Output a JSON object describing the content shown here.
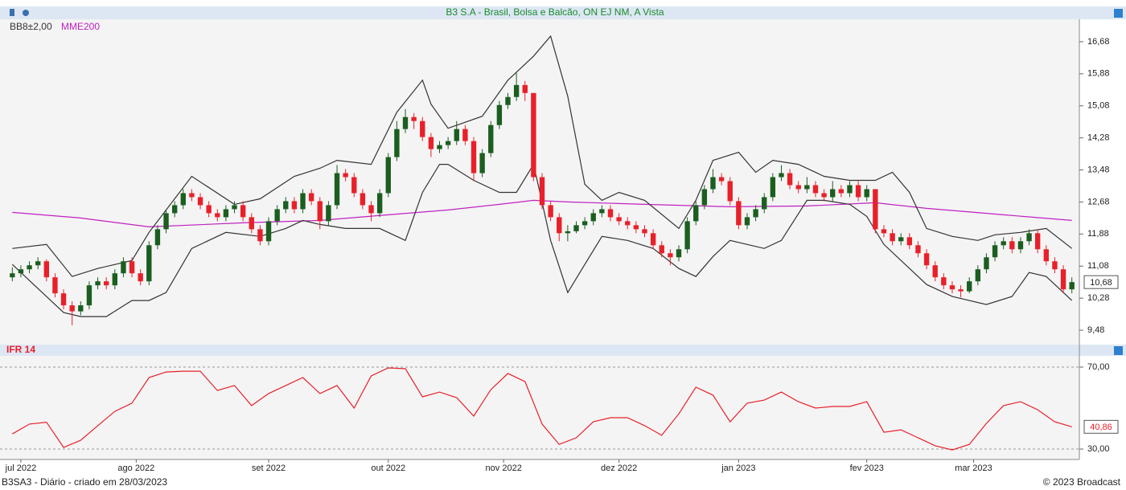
{
  "chart_data": [
    {
      "type": "candlestick",
      "title": "B3 S.A - Brasil, Bolsa e Balcão, ON  EJ  NM, A Vista",
      "up_color": "#1b5e20",
      "down_color": "#e8202a",
      "candles": [
        [
          10.8,
          11.05,
          10.7,
          10.9
        ],
        [
          10.9,
          11.1,
          10.8,
          11.0
        ],
        [
          11.0,
          11.2,
          10.9,
          11.1
        ],
        [
          11.1,
          11.3,
          11.0,
          11.2
        ],
        [
          11.2,
          11.25,
          10.7,
          10.8
        ],
        [
          10.8,
          10.9,
          10.3,
          10.4
        ],
        [
          10.4,
          10.5,
          10.0,
          10.1
        ],
        [
          10.1,
          10.2,
          9.6,
          9.95
        ],
        [
          9.95,
          10.2,
          9.85,
          10.1
        ],
        [
          10.1,
          10.7,
          10.0,
          10.6
        ],
        [
          10.6,
          10.8,
          10.5,
          10.7
        ],
        [
          10.7,
          10.8,
          10.5,
          10.6
        ],
        [
          10.6,
          11.0,
          10.5,
          10.9
        ],
        [
          10.9,
          11.3,
          10.8,
          11.2
        ],
        [
          11.2,
          11.3,
          10.8,
          10.9
        ],
        [
          10.9,
          11.0,
          10.6,
          10.7
        ],
        [
          10.7,
          11.7,
          10.6,
          11.6
        ],
        [
          11.6,
          12.1,
          11.5,
          12.0
        ],
        [
          12.0,
          12.5,
          11.9,
          12.4
        ],
        [
          12.4,
          12.7,
          12.3,
          12.6
        ],
        [
          12.6,
          13.0,
          12.5,
          12.9
        ],
        [
          12.9,
          13.0,
          12.7,
          12.8
        ],
        [
          12.8,
          12.9,
          12.5,
          12.6
        ],
        [
          12.6,
          12.7,
          12.3,
          12.4
        ],
        [
          12.4,
          12.5,
          12.2,
          12.3
        ],
        [
          12.3,
          12.6,
          12.2,
          12.5
        ],
        [
          12.5,
          12.7,
          12.4,
          12.6
        ],
        [
          12.6,
          12.7,
          12.2,
          12.3
        ],
        [
          12.3,
          12.4,
          11.9,
          12.0
        ],
        [
          12.0,
          12.1,
          11.6,
          11.7
        ],
        [
          11.7,
          12.3,
          11.6,
          12.2
        ],
        [
          12.2,
          12.6,
          12.1,
          12.5
        ],
        [
          12.5,
          12.8,
          12.4,
          12.7
        ],
        [
          12.7,
          12.8,
          12.4,
          12.5
        ],
        [
          12.5,
          13.0,
          12.4,
          12.9
        ],
        [
          12.9,
          13.0,
          12.6,
          12.7
        ],
        [
          12.7,
          12.8,
          12.0,
          12.2
        ],
        [
          12.2,
          12.7,
          12.1,
          12.6
        ],
        [
          12.6,
          13.6,
          12.5,
          13.4
        ],
        [
          13.4,
          13.5,
          13.2,
          13.3
        ],
        [
          13.3,
          13.4,
          12.8,
          12.9
        ],
        [
          12.9,
          13.0,
          12.5,
          12.6
        ],
        [
          12.6,
          12.7,
          12.2,
          12.4
        ],
        [
          12.4,
          13.0,
          12.3,
          12.9
        ],
        [
          12.9,
          13.9,
          12.8,
          13.8
        ],
        [
          13.8,
          14.7,
          13.7,
          14.5
        ],
        [
          14.5,
          15.0,
          14.4,
          14.8
        ],
        [
          14.8,
          14.9,
          14.5,
          14.7
        ],
        [
          14.7,
          14.8,
          14.2,
          14.3
        ],
        [
          14.3,
          14.4,
          13.8,
          14.0
        ],
        [
          14.0,
          14.2,
          13.9,
          14.1
        ],
        [
          14.1,
          14.3,
          14.0,
          14.2
        ],
        [
          14.2,
          14.7,
          14.1,
          14.5
        ],
        [
          14.5,
          14.6,
          14.1,
          14.2
        ],
        [
          14.2,
          14.3,
          13.2,
          13.4
        ],
        [
          13.4,
          14.0,
          13.3,
          13.9
        ],
        [
          13.9,
          14.7,
          13.8,
          14.6
        ],
        [
          14.6,
          15.2,
          14.5,
          15.1
        ],
        [
          15.1,
          15.4,
          15.0,
          15.3
        ],
        [
          15.3,
          15.9,
          15.2,
          15.6
        ],
        [
          15.6,
          15.7,
          15.2,
          15.4
        ],
        [
          15.4,
          15.4,
          13.2,
          13.3
        ],
        [
          13.3,
          13.4,
          12.5,
          12.6
        ],
        [
          12.6,
          12.7,
          12.2,
          12.3
        ],
        [
          12.3,
          12.4,
          11.7,
          11.9
        ],
        [
          11.9,
          12.1,
          11.7,
          11.95
        ],
        [
          11.95,
          12.2,
          11.9,
          12.1
        ],
        [
          12.1,
          12.3,
          12.0,
          12.2
        ],
        [
          12.2,
          12.5,
          12.1,
          12.4
        ],
        [
          12.4,
          12.6,
          12.3,
          12.5
        ],
        [
          12.5,
          12.6,
          12.2,
          12.3
        ],
        [
          12.3,
          12.4,
          12.1,
          12.2
        ],
        [
          12.2,
          12.3,
          12.0,
          12.1
        ],
        [
          12.1,
          12.2,
          11.9,
          12.0
        ],
        [
          12.0,
          12.1,
          11.8,
          11.9
        ],
        [
          11.9,
          12.0,
          11.5,
          11.6
        ],
        [
          11.6,
          11.7,
          11.3,
          11.4
        ],
        [
          11.4,
          11.5,
          11.1,
          11.3
        ],
        [
          11.3,
          11.6,
          11.2,
          11.5
        ],
        [
          11.5,
          12.3,
          11.4,
          12.2
        ],
        [
          12.2,
          12.7,
          12.1,
          12.6
        ],
        [
          12.6,
          13.1,
          12.5,
          13.0
        ],
        [
          13.0,
          13.5,
          12.9,
          13.3
        ],
        [
          13.3,
          13.4,
          13.1,
          13.2
        ],
        [
          13.2,
          13.3,
          12.6,
          12.7
        ],
        [
          12.7,
          12.8,
          12.0,
          12.1
        ],
        [
          12.1,
          12.4,
          12.0,
          12.3
        ],
        [
          12.3,
          12.6,
          12.2,
          12.5
        ],
        [
          12.5,
          12.9,
          12.4,
          12.8
        ],
        [
          12.8,
          13.4,
          12.7,
          13.3
        ],
        [
          13.3,
          13.6,
          13.2,
          13.4
        ],
        [
          13.4,
          13.5,
          13.0,
          13.1
        ],
        [
          13.1,
          13.2,
          12.9,
          13.0
        ],
        [
          13.0,
          13.3,
          12.9,
          13.1
        ],
        [
          13.1,
          13.2,
          12.8,
          12.9
        ],
        [
          12.9,
          13.0,
          12.7,
          12.8
        ],
        [
          12.8,
          13.2,
          12.7,
          13.0
        ],
        [
          13.0,
          13.1,
          12.8,
          12.9
        ],
        [
          12.9,
          13.2,
          12.8,
          13.1
        ],
        [
          13.1,
          13.2,
          12.7,
          12.8
        ],
        [
          12.8,
          13.1,
          12.7,
          13.0
        ],
        [
          13.0,
          13.0,
          11.9,
          12.0
        ],
        [
          12.0,
          12.1,
          11.8,
          11.9
        ],
        [
          11.9,
          12.0,
          11.6,
          11.7
        ],
        [
          11.7,
          11.9,
          11.6,
          11.8
        ],
        [
          11.8,
          11.9,
          11.5,
          11.6
        ],
        [
          11.6,
          11.7,
          11.3,
          11.4
        ],
        [
          11.4,
          11.5,
          11.0,
          11.1
        ],
        [
          11.1,
          11.2,
          10.7,
          10.8
        ],
        [
          10.8,
          10.9,
          10.5,
          10.6
        ],
        [
          10.6,
          10.7,
          10.4,
          10.5
        ],
        [
          10.5,
          10.6,
          10.3,
          10.45
        ],
        [
          10.45,
          10.8,
          10.4,
          10.7
        ],
        [
          10.7,
          11.1,
          10.6,
          11.0
        ],
        [
          11.0,
          11.4,
          10.9,
          11.3
        ],
        [
          11.3,
          11.7,
          11.2,
          11.6
        ],
        [
          11.6,
          11.8,
          11.5,
          11.7
        ],
        [
          11.7,
          11.8,
          11.4,
          11.5
        ],
        [
          11.5,
          11.8,
          11.4,
          11.7
        ],
        [
          11.7,
          12.0,
          11.6,
          11.9
        ],
        [
          11.9,
          12.0,
          11.4,
          11.5
        ],
        [
          11.5,
          11.6,
          11.1,
          11.2
        ],
        [
          11.2,
          11.3,
          10.9,
          11.0
        ],
        [
          11.0,
          11.1,
          10.4,
          10.5
        ],
        [
          10.5,
          10.8,
          10.4,
          10.68
        ]
      ],
      "series": [
        {
          "name": "BB8±2,00",
          "color": "#333333",
          "upper": {
            "x": [
              0,
              4,
              7,
              10,
              14,
              16,
              21,
              26,
              29,
              33,
              36,
              38,
              42,
              45,
              48,
              49,
              51,
              55,
              58,
              61,
              63,
              65,
              67,
              69,
              71,
              74,
              78,
              80,
              82,
              85,
              87,
              89,
              92,
              95,
              98,
              101,
              103,
              105,
              107,
              110,
              113,
              115,
              118,
              121,
              124
            ],
            "values": [
              11.52,
              11.62,
              10.82,
              11.02,
              11.22,
              11.92,
              13.32,
              12.62,
              12.76,
              13.32,
              13.52,
              13.72,
              13.62,
              14.92,
              15.72,
              15.12,
              14.52,
              14.82,
              15.72,
              16.32,
              16.82,
              15.32,
              13.12,
              12.72,
              12.92,
              12.72,
              12.02,
              12.72,
              13.72,
              13.92,
              13.42,
              13.72,
              13.62,
              13.32,
              13.22,
              13.22,
              13.42,
              12.92,
              12.02,
              11.82,
              11.72,
              11.86,
              11.92,
              12.02,
              11.52
            ]
          },
          "lower": {
            "x": [
              0,
              3,
              6,
              8,
              11,
              14,
              16,
              18,
              21,
              25,
              29,
              32,
              34,
              36,
              39,
              43,
              46,
              48,
              50,
              51,
              54,
              57,
              59,
              61,
              63,
              65,
              67,
              69,
              72,
              75,
              78,
              80,
              82,
              84,
              86,
              88,
              90,
              93,
              95,
              98,
              100,
              102,
              105,
              107,
              110,
              114,
              117,
              119,
              121,
              124
            ],
            "values": [
              11.12,
              10.52,
              9.92,
              9.82,
              9.82,
              10.22,
              10.22,
              10.42,
              11.52,
              11.92,
              11.82,
              12.02,
              12.22,
              12.12,
              12.02,
              12.02,
              11.72,
              12.92,
              13.62,
              13.62,
              13.22,
              12.92,
              12.92,
              13.62,
              11.72,
              10.42,
              11.12,
              11.82,
              11.72,
              11.52,
              11.02,
              10.82,
              11.32,
              11.72,
              11.62,
              11.52,
              11.72,
              12.72,
              12.72,
              12.62,
              12.32,
              11.62,
              11.02,
              10.62,
              10.32,
              10.12,
              10.32,
              10.92,
              10.82,
              10.22
            ]
          }
        },
        {
          "name": "MME200",
          "color": "#c020c0",
          "x": [
            0,
            8,
            16,
            27,
            36,
            44,
            51,
            57,
            61,
            65,
            74,
            84,
            93,
            101,
            107,
            116,
            124
          ],
          "values": [
            12.42,
            12.28,
            12.06,
            12.16,
            12.22,
            12.36,
            12.48,
            12.62,
            12.72,
            12.68,
            12.62,
            12.56,
            12.58,
            12.66,
            12.52,
            12.36,
            12.22
          ]
        }
      ],
      "ylim": [
        9.14,
        17.16
      ],
      "yticks": [
        {
          "value": 9.48,
          "label": "9,48"
        },
        {
          "value": 10.28,
          "label": "10,28"
        },
        {
          "value": 11.08,
          "label": "11,08"
        },
        {
          "value": 11.88,
          "label": "11,88"
        },
        {
          "value": 12.68,
          "label": "12,68"
        },
        {
          "value": 13.48,
          "label": "13,48"
        },
        {
          "value": 14.28,
          "label": "14,28"
        },
        {
          "value": 15.08,
          "label": "15,08"
        },
        {
          "value": 15.88,
          "label": "15,88"
        },
        {
          "value": 16.68,
          "label": "16,68"
        }
      ],
      "last_label": {
        "value": 10.68,
        "label": "10,68"
      }
    },
    {
      "type": "line",
      "title": "IFR 14",
      "color": "#e8202a",
      "x": [
        0,
        2,
        4,
        6,
        8,
        10,
        12,
        14,
        16,
        18,
        20,
        22,
        24,
        26,
        28,
        30,
        32,
        34,
        36,
        38,
        40,
        42,
        44,
        46,
        48,
        50,
        52,
        54,
        56,
        58,
        60,
        62,
        64,
        66,
        68,
        70,
        72,
        74,
        76,
        78,
        80,
        82,
        84,
        86,
        88,
        90,
        92,
        94,
        96,
        98,
        100,
        102,
        104,
        106,
        108,
        110,
        112,
        114,
        116,
        118,
        120,
        122,
        124
      ],
      "values": [
        37.4,
        42.2,
        43.1,
        30.8,
        34.3,
        41.4,
        48.4,
        52.4,
        64.9,
        67.6,
        68.0,
        68.0,
        58.6,
        61.0,
        51.2,
        57.1,
        61.0,
        64.9,
        57.1,
        61.0,
        50.0,
        65.7,
        69.6,
        69.2,
        55.5,
        57.8,
        55.1,
        46.1,
        59.0,
        66.9,
        62.9,
        42.2,
        32.3,
        35.5,
        43.3,
        45.3,
        45.3,
        41.4,
        36.7,
        47.2,
        60.2,
        56.3,
        43.3,
        52.4,
        53.9,
        57.8,
        53.1,
        50.0,
        50.8,
        50.8,
        53.1,
        38.2,
        39.4,
        35.5,
        31.6,
        29.6,
        32.3,
        42.5,
        51.2,
        53.1,
        49.2,
        43.3,
        40.86
      ],
      "ylim": [
        25.7,
        74.7
      ],
      "yticks": [
        {
          "value": 30,
          "label": "30,00"
        },
        {
          "value": 70,
          "label": "70,00"
        }
      ],
      "grid": true,
      "last_label": {
        "value": 40.86,
        "label": "40,86"
      },
      "xlim": [
        -0.5,
        124.5
      ],
      "xticks": [
        {
          "value": 1,
          "label": "jul 2022"
        },
        {
          "value": 14.5,
          "label": "ago 2022"
        },
        {
          "value": 30,
          "label": "set 2022"
        },
        {
          "value": 44,
          "label": "out 2022"
        },
        {
          "value": 57.5,
          "label": "nov 2022"
        },
        {
          "value": 71,
          "label": "dez 2022"
        },
        {
          "value": 85,
          "label": "jan 2023"
        },
        {
          "value": 100,
          "label": "fev 2023"
        },
        {
          "value": 112.5,
          "label": "mar 2023"
        }
      ]
    }
  ],
  "footer": {
    "left": "B3SA3 - Diário - criado em 28/03/2023",
    "right": "© 2023 Broadcast"
  }
}
